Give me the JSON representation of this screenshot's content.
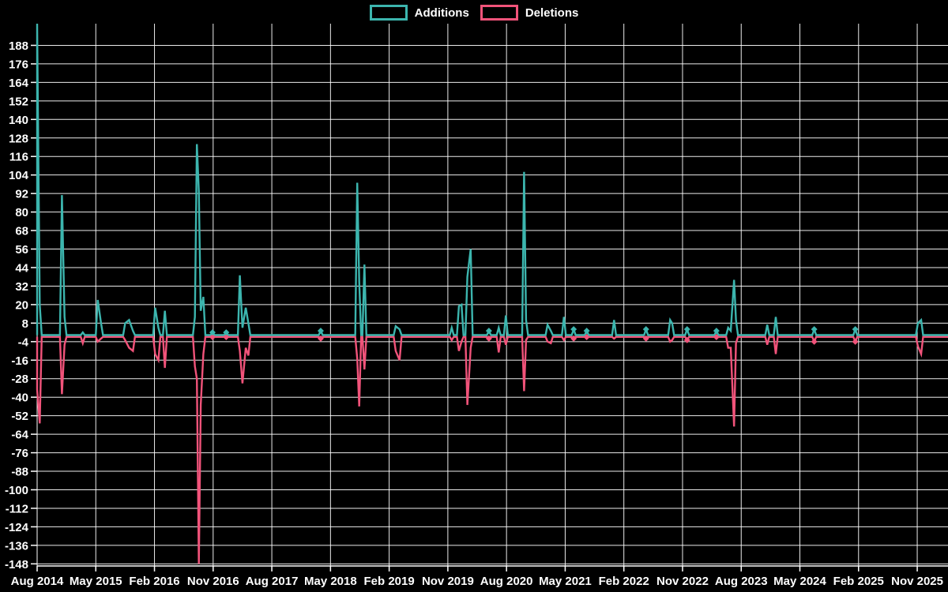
{
  "page": {
    "background": "#000000",
    "text_color": "#ffffff",
    "grid_color": "#ffffff"
  },
  "legend": {
    "items": [
      {
        "label": "Additions",
        "color": "#3cb5ae"
      },
      {
        "label": "Deletions",
        "color": "#f1537a"
      }
    ]
  },
  "chart_data": {
    "type": "line",
    "title": "",
    "legend_position": "top-center",
    "grid": true,
    "background": "#000000",
    "series": [
      {
        "name": "Additions",
        "color": "#3cb5ae"
      },
      {
        "name": "Deletions",
        "color": "#f1537a"
      }
    ],
    "x_axis": {
      "unit": "months since Aug 2014",
      "tick_interval_months": 9,
      "tick_labels": [
        "Aug 2014",
        "May 2015",
        "Feb 2016",
        "Nov 2016",
        "Aug 2017",
        "May 2018",
        "Feb 2019",
        "Nov 2019",
        "Aug 2020",
        "May 2021",
        "Feb 2022",
        "Nov 2022",
        "Aug 2023",
        "May 2024",
        "Feb 2025",
        "Nov 2025"
      ],
      "min": 0,
      "max": 139.7
    },
    "y_axis": {
      "ticks": [
        188,
        176,
        164,
        152,
        140,
        128,
        116,
        104,
        92,
        80,
        68,
        56,
        44,
        32,
        20,
        8,
        -4,
        -16,
        -28,
        -40,
        -52,
        -64,
        -76,
        -88,
        -100,
        -112,
        -124,
        -136,
        -148
      ],
      "min": -150.7,
      "max": 202
    },
    "baseline_value": 0,
    "points": [
      {
        "t": 0.0,
        "date": "Aug 2014",
        "add": 202,
        "del": -35
      },
      {
        "t": 0.4,
        "date": "Aug 2014",
        "add": 20,
        "del": -57
      },
      {
        "t": 3.8,
        "date": "Dec 2014",
        "add": 91,
        "del": -38
      },
      {
        "t": 4.2,
        "date": "Dec 2014",
        "add": 12,
        "del": -6
      },
      {
        "t": 7.0,
        "date": "Mar 2015",
        "add": 2,
        "del": -5
      },
      {
        "t": 9.3,
        "date": "May 2015",
        "add": 23,
        "del": -4
      },
      {
        "t": 9.8,
        "date": "Jun 2015",
        "add": 8,
        "del": -2
      },
      {
        "t": 13.5,
        "date": "Sep 2015",
        "add": 8,
        "del": -3
      },
      {
        "t": 14.1,
        "date": "Oct 2015",
        "add": 10,
        "del": -8
      },
      {
        "t": 14.7,
        "date": "Oct 2015",
        "add": 3,
        "del": -10
      },
      {
        "t": 18.1,
        "date": "Feb 2016",
        "add": 18,
        "del": -12
      },
      {
        "t": 18.6,
        "date": "Feb 2016",
        "add": 5,
        "del": -16
      },
      {
        "t": 19.6,
        "date": "Mar 2016",
        "add": 16,
        "del": -21
      },
      {
        "t": 24.2,
        "date": "Aug 2016",
        "add": 12,
        "del": -20
      },
      {
        "t": 24.5,
        "date": "Aug 2016",
        "add": 124,
        "del": -28
      },
      {
        "t": 24.8,
        "date": "Aug 2016",
        "add": 93,
        "del": -148
      },
      {
        "t": 25.1,
        "date": "Sep 2016",
        "add": 16,
        "del": -45
      },
      {
        "t": 25.5,
        "date": "Sep 2016",
        "add": 25,
        "del": -12
      },
      {
        "t": 26.9,
        "date": "Nov 2016",
        "add": 2,
        "del": -1,
        "marker": true
      },
      {
        "t": 29.0,
        "date": "Jan 2017",
        "add": 2,
        "del": -1,
        "marker": true
      },
      {
        "t": 31.1,
        "date": "Mar 2017",
        "add": 39,
        "del": -10
      },
      {
        "t": 31.5,
        "date": "Mar 2017",
        "add": 5,
        "del": -31
      },
      {
        "t": 32.0,
        "date": "Apr 2017",
        "add": 18,
        "del": -8
      },
      {
        "t": 32.4,
        "date": "Apr 2017",
        "add": 8,
        "del": -13
      },
      {
        "t": 43.5,
        "date": "Mar 2018",
        "add": 3,
        "del": -2,
        "marker": true
      },
      {
        "t": 49.1,
        "date": "Sep 2018",
        "add": 99,
        "del": -15
      },
      {
        "t": 49.4,
        "date": "Sep 2018",
        "add": 35,
        "del": -46
      },
      {
        "t": 50.2,
        "date": "Oct 2018",
        "add": 46,
        "del": -22
      },
      {
        "t": 55.0,
        "date": "Mar 2019",
        "add": 6,
        "del": -10
      },
      {
        "t": 55.6,
        "date": "Mar 2019",
        "add": 4,
        "del": -16
      },
      {
        "t": 63.6,
        "date": "Nov 2019",
        "add": 5,
        "del": -3
      },
      {
        "t": 64.7,
        "date": "Dec 2019",
        "add": 19,
        "del": -10
      },
      {
        "t": 65.1,
        "date": "Jan 2020",
        "add": 20,
        "del": -4
      },
      {
        "t": 66.0,
        "date": "Feb 2020",
        "add": 38,
        "del": -45
      },
      {
        "t": 66.5,
        "date": "Feb 2020",
        "add": 56,
        "del": -8
      },
      {
        "t": 69.3,
        "date": "May 2020",
        "add": 3,
        "del": -2,
        "marker": true
      },
      {
        "t": 70.8,
        "date": "Jun 2020",
        "add": 5,
        "del": -11
      },
      {
        "t": 71.9,
        "date": "Jul 2020",
        "add": 13,
        "del": -6
      },
      {
        "t": 74.7,
        "date": "Oct 2020",
        "add": 106,
        "del": -36
      },
      {
        "t": 75.0,
        "date": "Nov 2020",
        "add": 10,
        "del": -3
      },
      {
        "t": 78.3,
        "date": "Feb 2021",
        "add": 7,
        "del": -4
      },
      {
        "t": 78.8,
        "date": "Feb 2021",
        "add": 3,
        "del": -5
      },
      {
        "t": 80.8,
        "date": "Apr 2021",
        "add": 12,
        "del": -3
      },
      {
        "t": 82.3,
        "date": "Jun 2021",
        "add": 4,
        "del": -2,
        "marker": true
      },
      {
        "t": 84.3,
        "date": "Aug 2021",
        "add": 3,
        "del": -1,
        "marker": true
      },
      {
        "t": 88.5,
        "date": "Dec 2021",
        "add": 10,
        "del": -2
      },
      {
        "t": 93.4,
        "date": "May 2022",
        "add": 4,
        "del": -2,
        "marker": true
      },
      {
        "t": 97.1,
        "date": "Sep 2022",
        "add": 10,
        "del": -4
      },
      {
        "t": 97.4,
        "date": "Sep 2022",
        "add": 8,
        "del": -3
      },
      {
        "t": 99.7,
        "date": "Nov 2022",
        "add": 4,
        "del": -3,
        "marker": true
      },
      {
        "t": 104.2,
        "date": "Apr 2023",
        "add": 3,
        "del": -1,
        "marker": true
      },
      {
        "t": 106.0,
        "date": "Jun 2023",
        "add": 5,
        "del": -8
      },
      {
        "t": 106.4,
        "date": "Jun 2023",
        "add": 3,
        "del": -8
      },
      {
        "t": 106.9,
        "date": "Jul 2023",
        "add": 36,
        "del": -59
      },
      {
        "t": 107.2,
        "date": "Jul 2023",
        "add": 10,
        "del": -5
      },
      {
        "t": 112.0,
        "date": "Dec 2023",
        "add": 7,
        "del": -6
      },
      {
        "t": 113.3,
        "date": "Jan 2024",
        "add": 12,
        "del": -12
      },
      {
        "t": 119.2,
        "date": "Jul 2024",
        "add": 4,
        "del": -4,
        "marker": true
      },
      {
        "t": 125.5,
        "date": "Jan 2025",
        "add": 4,
        "del": -4,
        "marker": true
      },
      {
        "t": 135.1,
        "date": "Nov 2025",
        "add": 8,
        "del": -7
      },
      {
        "t": 135.6,
        "date": "Nov 2025",
        "add": 10,
        "del": -12
      }
    ]
  }
}
